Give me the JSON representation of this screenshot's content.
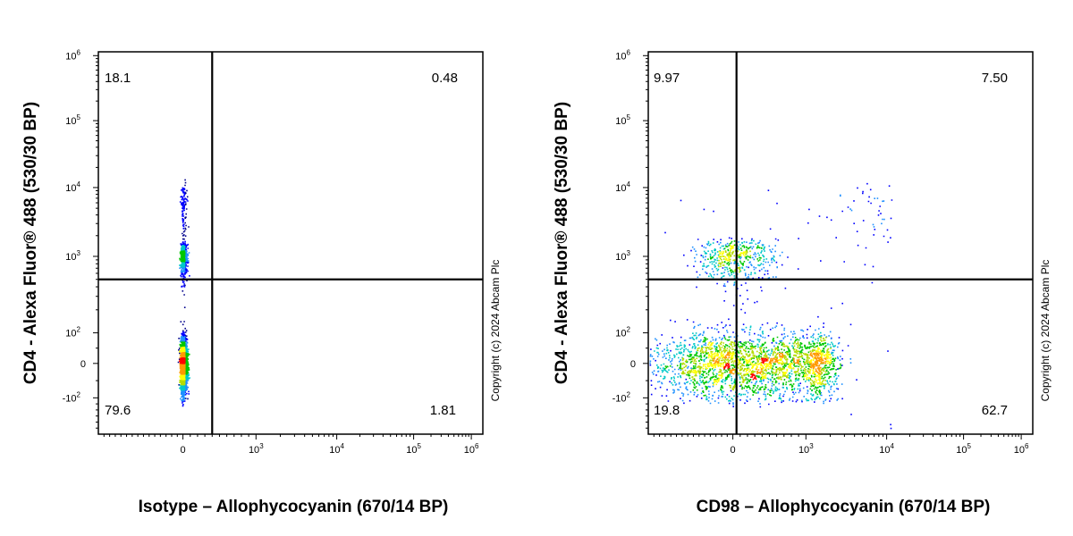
{
  "copyright": "Copyright (c) 2024 Abcam Plc",
  "colors": {
    "density": [
      "#00008b",
      "#0000ff",
      "#1e90ff",
      "#00c8c8",
      "#00c800",
      "#b4dc00",
      "#ffff00",
      "#ff9900",
      "#ff0000"
    ],
    "gate": "#000000",
    "frame": "#000000"
  },
  "chart_data": [
    {
      "type": "scatter",
      "ylabel": "CD4 - Alexa Fluor® 488 (530/30 BP)",
      "xlabel": "Isotype – Allophycocyanin (670/14 BP)",
      "x_scale": "biexponential",
      "y_scale": "biexponential",
      "x_ticks": [
        {
          "base": "0",
          "exp": ""
        },
        {
          "base": "10",
          "exp": "3"
        },
        {
          "base": "10",
          "exp": "4"
        },
        {
          "base": "10",
          "exp": "5"
        },
        {
          "base": "10",
          "exp": "6"
        }
      ],
      "y_ticks": [
        {
          "base": "-10",
          "exp": "2"
        },
        {
          "base": "0",
          "exp": ""
        },
        {
          "base": "10",
          "exp": "2"
        },
        {
          "base": "10",
          "exp": "3"
        },
        {
          "base": "10",
          "exp": "4"
        },
        {
          "base": "10",
          "exp": "5"
        },
        {
          "base": "10",
          "exp": "6"
        }
      ],
      "gate": {
        "x": 400,
        "y": 500
      },
      "quadrants": {
        "top_left": "18.1",
        "top_right": "0.48",
        "bottom_left": "79.6",
        "bottom_right": "1.81"
      },
      "populations": [
        {
          "cx": 0,
          "cy": 0,
          "sx": 25,
          "sy": 40,
          "n": 2600
        },
        {
          "cx": 0,
          "cy": 1000,
          "sx": 25,
          "sy": 250,
          "n": 550
        },
        {
          "cx": 0,
          "cy": 5000,
          "sx": 25,
          "sy": 3000,
          "n": 120
        }
      ]
    },
    {
      "type": "scatter",
      "ylabel": "CD4 - Alexa Fluor® 488 (530/30 BP)",
      "xlabel": "CD98 – Allophycocyanin (670/14 BP)",
      "x_scale": "biexponential",
      "y_scale": "biexponential",
      "x_ticks": [
        {
          "base": "0",
          "exp": ""
        },
        {
          "base": "10",
          "exp": "3"
        },
        {
          "base": "10",
          "exp": "4"
        },
        {
          "base": "10",
          "exp": "5"
        },
        {
          "base": "10",
          "exp": "6"
        }
      ],
      "y_ticks": [
        {
          "base": "-10",
          "exp": "2"
        },
        {
          "base": "0",
          "exp": ""
        },
        {
          "base": "10",
          "exp": "2"
        },
        {
          "base": "10",
          "exp": "3"
        },
        {
          "base": "10",
          "exp": "4"
        },
        {
          "base": "10",
          "exp": "5"
        },
        {
          "base": "10",
          "exp": "6"
        }
      ],
      "gate": {
        "x": 50,
        "y": 500
      },
      "quadrants": {
        "top_left": "9.97",
        "top_right": "7.50",
        "bottom_left": "19.8",
        "bottom_right": "62.7"
      },
      "populations": [
        {
          "cx": 300,
          "cy": 0,
          "sx": 900,
          "sy": 50,
          "n": 2800
        },
        {
          "cx": 0,
          "cy": 1000,
          "sx": 300,
          "sy": 350,
          "n": 500
        },
        {
          "cx": 2000,
          "cy": 2000,
          "sx": 6000,
          "sy": 4000,
          "n": 140
        }
      ]
    }
  ]
}
